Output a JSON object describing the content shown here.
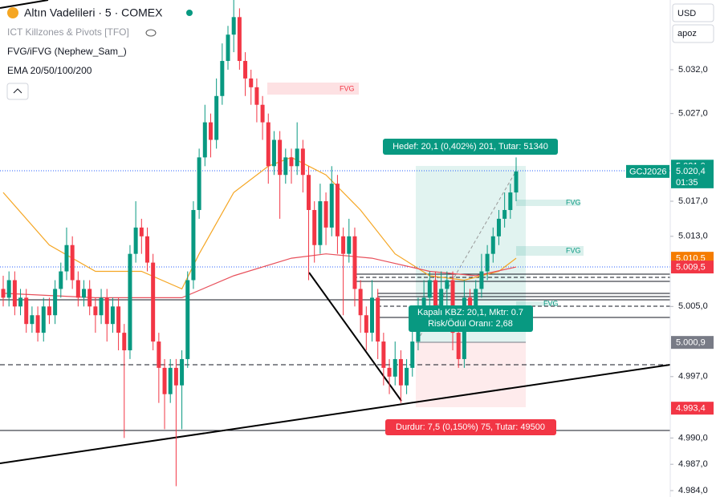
{
  "chart_data": {
    "type": "candlestick",
    "title": "Altın Vadelileri · 5 · COMEX",
    "indicators": [
      "ICT Killzones & Pivots [TFO]",
      "FVG/iFVG (Nephew_Sam_)",
      "EMA 20/50/100/200"
    ],
    "currency": "USD",
    "scale_mode": "apoz",
    "up_color": "#089981",
    "down_color": "#f23645",
    "ylim": [
      4983.27,
      5039.95
    ],
    "yticks": [
      {
        "value": 5032,
        "label": "5.032,0"
      },
      {
        "value": 5027,
        "label": "5.027,0"
      },
      {
        "value": 5017,
        "label": "5.017,0"
      },
      {
        "value": 5013,
        "label": "5.013,0"
      },
      {
        "value": 5005,
        "label": "5.005,0"
      },
      {
        "value": 4997,
        "label": "4.997,0"
      },
      {
        "value": 4990,
        "label": "4.990,0"
      },
      {
        "value": 4987,
        "label": "4.987,0"
      },
      {
        "value": 4984,
        "label": "4.984,0"
      }
    ],
    "candles": [
      [
        5007,
        5008.5,
        5005,
        5006
      ],
      [
        5006,
        5009,
        5005,
        5008
      ],
      [
        5008,
        5009,
        5004,
        5005
      ],
      [
        5005,
        5007,
        5004,
        5006
      ],
      [
        5006,
        5007,
        5002,
        5003
      ],
      [
        5003,
        5005,
        5002,
        5004
      ],
      [
        5004,
        5005,
        5001,
        5002
      ],
      [
        5002,
        5006,
        5001,
        5005
      ],
      [
        5005,
        5006,
        5003,
        5004
      ],
      [
        5004,
        5008,
        5003,
        5007
      ],
      [
        5007,
        5010,
        5006,
        5009
      ],
      [
        5009,
        5014,
        5008,
        5012
      ],
      [
        5012,
        5013,
        5007,
        5008
      ],
      [
        5008,
        5009,
        5005,
        5006
      ],
      [
        5006,
        5008,
        5005,
        5007
      ],
      [
        5007,
        5008,
        5004,
        5005
      ],
      [
        5005,
        5006,
        5002,
        5004
      ],
      [
        5004,
        5007,
        5003,
        5006
      ],
      [
        5006,
        5007,
        5001,
        5003
      ],
      [
        5003,
        5006,
        5002,
        5005
      ],
      [
        5005,
        5006,
        5000,
        5002
      ],
      [
        5002,
        5003,
        4990,
        5000
      ],
      [
        5000,
        5012,
        4999,
        5011
      ],
      [
        5011,
        5017,
        5010,
        5014
      ],
      [
        5014,
        5015,
        5011,
        5013
      ],
      [
        5013,
        5014,
        5009,
        5010
      ],
      [
        5010,
        5011,
        5000,
        5001
      ],
      [
        5001,
        5002,
        4994,
        4998
      ],
      [
        4998,
        4999,
        4991,
        4995
      ],
      [
        4995,
        4999,
        4994,
        4998
      ],
      [
        4998,
        4999,
        4984.5,
        4996
      ],
      [
        4996,
        5000,
        4991,
        4999
      ],
      [
        4999,
        5009,
        4998,
        5008
      ],
      [
        5008,
        5017,
        5007,
        5016
      ],
      [
        5016,
        5023,
        5015,
        5022
      ],
      [
        5022,
        5028,
        5021,
        5026
      ],
      [
        5026,
        5027,
        5022,
        5024
      ],
      [
        5024,
        5031,
        5023,
        5029
      ],
      [
        5029,
        5035,
        5028,
        5033
      ],
      [
        5033,
        5037,
        5032,
        5036
      ],
      [
        5036,
        5040,
        5034,
        5038
      ],
      [
        5038,
        5039,
        5032,
        5033
      ],
      [
        5033,
        5034,
        5029,
        5031
      ],
      [
        5031,
        5032,
        5028,
        5030
      ],
      [
        5030,
        5031,
        5026,
        5028
      ],
      [
        5028,
        5029,
        5024,
        5026
      ],
      [
        5026,
        5027,
        5019,
        5021
      ],
      [
        5021,
        5025,
        5020,
        5024
      ],
      [
        5024,
        5025,
        5015,
        5020
      ],
      [
        5020,
        5023,
        5019,
        5022
      ],
      [
        5022,
        5023,
        5019,
        5021
      ],
      [
        5021,
        5026,
        5020,
        5023
      ],
      [
        5023,
        5024,
        5018,
        5020
      ],
      [
        5020,
        5021,
        5008,
        5016
      ],
      [
        5016,
        5017,
        5010,
        5012
      ],
      [
        5012,
        5019,
        5011,
        5017
      ],
      [
        5017,
        5018,
        5012,
        5014
      ],
      [
        5014,
        5021,
        5013,
        5019
      ],
      [
        5019,
        5020,
        5011,
        5013
      ],
      [
        5013,
        5014,
        5004,
        5011
      ],
      [
        5011,
        5015,
        5010,
        5013
      ],
      [
        5013,
        5014,
        5005,
        5007
      ],
      [
        5007,
        5008,
        5002,
        5004
      ],
      [
        5004,
        5005,
        5000,
        5002
      ],
      [
        5002,
        5008,
        5001,
        5006
      ],
      [
        5006,
        5007,
        4999,
        5001
      ],
      [
        5001,
        5002,
        4996,
        4998
      ],
      [
        4998,
        4999,
        4995,
        4997
      ],
      [
        4997,
        5001,
        4996,
        4999
      ],
      [
        4999,
        5000,
        4994,
        4996
      ],
      [
        4996,
        4999,
        4995,
        4998
      ],
      [
        4998,
        5003,
        4997,
        5001
      ],
      [
        5001,
        5006,
        5000,
        5004
      ],
      [
        5004,
        5008,
        5003,
        5006
      ],
      [
        5006,
        5009,
        5004,
        5008
      ],
      [
        5008,
        5009,
        5003,
        5005
      ],
      [
        5005,
        5009,
        5004,
        5007
      ],
      [
        5007,
        5009,
        5005,
        5008
      ],
      [
        5008,
        5009,
        5000,
        5002
      ],
      [
        5002,
        5004,
        4998,
        4999
      ],
      [
        4999,
        5008,
        4998,
        5006
      ],
      [
        5006,
        5007,
        5003,
        5005
      ],
      [
        5005,
        5008,
        5004,
        5007
      ],
      [
        5007,
        5011,
        5006,
        5009
      ],
      [
        5009,
        5012,
        5008,
        5011
      ],
      [
        5011,
        5014,
        5010,
        5013
      ],
      [
        5013,
        5016,
        5012,
        5015
      ],
      [
        5015,
        5018,
        5014,
        5016
      ],
      [
        5016,
        5019,
        5015,
        5018
      ],
      [
        5018,
        5022,
        5017,
        5020.4
      ]
    ],
    "ema": [
      {
        "color": "#f5a623",
        "x": [
          0,
          8,
          16,
          24,
          31,
          34,
          40,
          46,
          50,
          56,
          62,
          68,
          74,
          80,
          86,
          89
        ],
        "values": [
          5018,
          5012,
          5009,
          5009,
          5007,
          5011,
          5018,
          5021,
          5022,
          5020,
          5016,
          5011,
          5008.5,
          5008,
          5009,
          5010.5
        ]
      },
      {
        "color": "#e8505b",
        "x": [
          0,
          16,
          24,
          31,
          40,
          50,
          56,
          64,
          74,
          82,
          89
        ],
        "values": [
          5006.5,
          5006,
          5006,
          5006,
          5008.5,
          5010.5,
          5011,
          5010.5,
          5009,
          5008.5,
          5009.5
        ]
      }
    ],
    "last_price": {
      "symbol": "GCJ2026",
      "value": 5020.4,
      "label": "5.020,4",
      "countdown": "01:35",
      "color": "#089981"
    },
    "price_labels": [
      {
        "value": 5021,
        "label": "5.021,0",
        "color": "#089981"
      },
      {
        "value": 5010.5,
        "label": "5.010,5",
        "color": "#f57c00"
      },
      {
        "value": 5009.5,
        "label": "5.009,5",
        "color": "#f23645"
      },
      {
        "value": 5000.9,
        "label": "5.000,9",
        "color": "#787b86"
      },
      {
        "value": 4993.4,
        "label": "4.993,4",
        "color": "#f23645"
      }
    ],
    "fvg_label": "FVG",
    "target_label": "Hedef: 20,1 (0,402%) 201, Tutar: 51340",
    "position_label": [
      "Kapalı KBZ: 20,1, Mktr: 0.7",
      "Risk/Ödül Oranı: 2,68"
    ],
    "stop_label": "Durdur: 7,5 (0,150%) 75, Tutar: 49500"
  }
}
